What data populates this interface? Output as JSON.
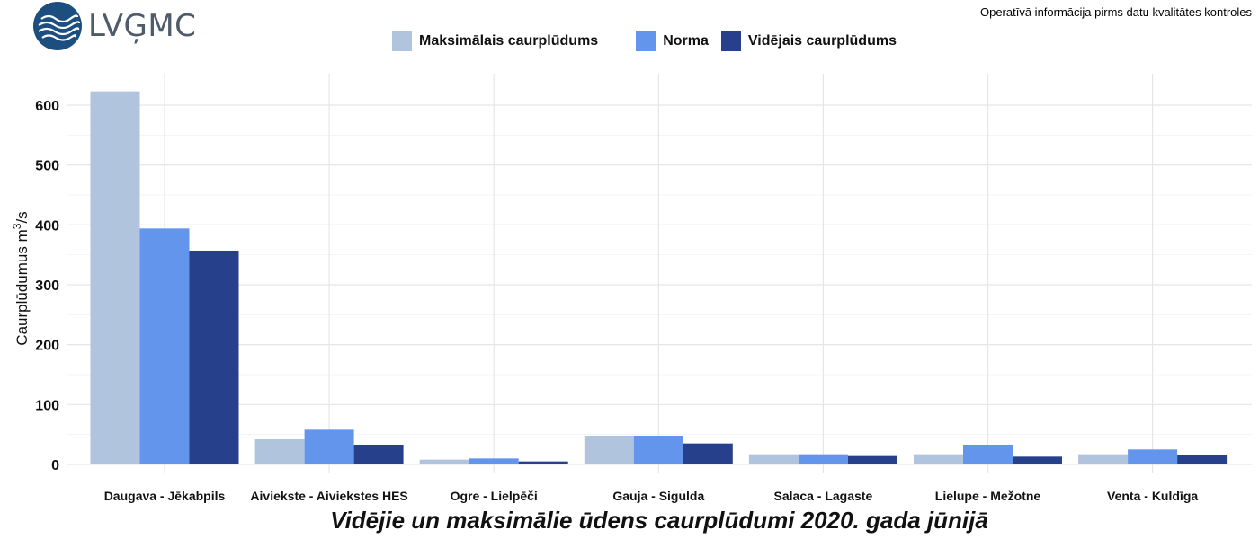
{
  "header": {
    "logo_text": "LVĢMC",
    "notice": "Operatīvā informācija pirms datu kvalitātes kontroles"
  },
  "colors": {
    "max": "#b0c4de",
    "norm": "#6495ed",
    "avg": "#27408b",
    "logo": "#1c4e80"
  },
  "chart_data": {
    "type": "bar",
    "title": "Vidējie un maksimālie ūdens caurplūdumi 2020. gada jūnijā",
    "ylabel": "Caurplūdumus  m³/s",
    "ylabel_main": "Caurplūdumus  m",
    "ylabel_sup": "3",
    "ylabel_unit": "/s",
    "ylim": [
      0,
      650
    ],
    "yticks": [
      0,
      100,
      200,
      300,
      400,
      500,
      600
    ],
    "grid": true,
    "legend_position": "top",
    "categories": [
      "Daugava - Jēkabpils",
      "Aiviekste - Aiviekstes HES",
      "Ogre - Lielpēči",
      "Gauja - Sigulda",
      "Salaca - Lagaste",
      "Lielupe - Mežotne",
      "Venta - Kuldīga"
    ],
    "series": [
      {
        "name": "Maksimālais caurplūdums",
        "color": "#b0c4de",
        "values": [
          623,
          42,
          8,
          48,
          17,
          17,
          17
        ]
      },
      {
        "name": "Norma",
        "color": "#6495ed",
        "values": [
          394,
          58,
          10,
          48,
          17,
          33,
          25
        ]
      },
      {
        "name": "Vidējais caurplūdums",
        "color": "#27408b",
        "values": [
          357,
          33,
          5,
          35,
          14,
          13,
          15
        ]
      }
    ]
  }
}
